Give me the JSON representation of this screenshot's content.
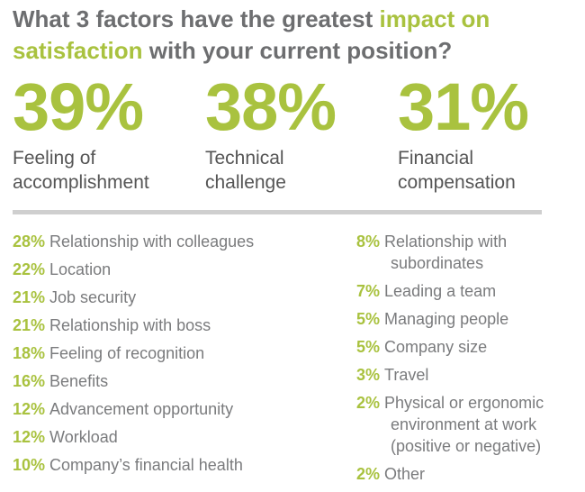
{
  "title": {
    "part1": "What 3 factors have the greatest ",
    "highlight1": "impact on",
    "highlight2": "satisfaction",
    "part2": " with your current position?"
  },
  "colors": {
    "accent": "#a9c23f",
    "text": "#6d6e70",
    "divider": "#cfcfcf"
  },
  "chart_data": {
    "type": "table",
    "top_factors": [
      {
        "value": 39,
        "label": "Feeling of\naccomplishment"
      },
      {
        "value": 38,
        "label": "Technical\nchallenge"
      },
      {
        "value": 31,
        "label": "Financial\ncompensation"
      }
    ],
    "left_column": [
      {
        "value": 28,
        "label": "Relationship with colleagues"
      },
      {
        "value": 22,
        "label": "Location"
      },
      {
        "value": 21,
        "label": "Job security"
      },
      {
        "value": 21,
        "label": "Relationship with boss"
      },
      {
        "value": 18,
        "label": "Feeling of recognition"
      },
      {
        "value": 16,
        "label": "Benefits"
      },
      {
        "value": 12,
        "label": "Advancement opportunity"
      },
      {
        "value": 12,
        "label": "Workload"
      },
      {
        "value": 10,
        "label": "Company’s financial health"
      }
    ],
    "right_column": [
      {
        "value": 8,
        "label": "Relationship with\nsubordinates"
      },
      {
        "value": 7,
        "label": "Leading a team"
      },
      {
        "value": 5,
        "label": "Managing people"
      },
      {
        "value": 5,
        "label": "Company size"
      },
      {
        "value": 3,
        "label": "Travel"
      },
      {
        "value": 2,
        "label": "Physical or ergonomic\nenvironment at work\n(positive or negative)"
      },
      {
        "value": 2,
        "label": "Other"
      }
    ]
  }
}
